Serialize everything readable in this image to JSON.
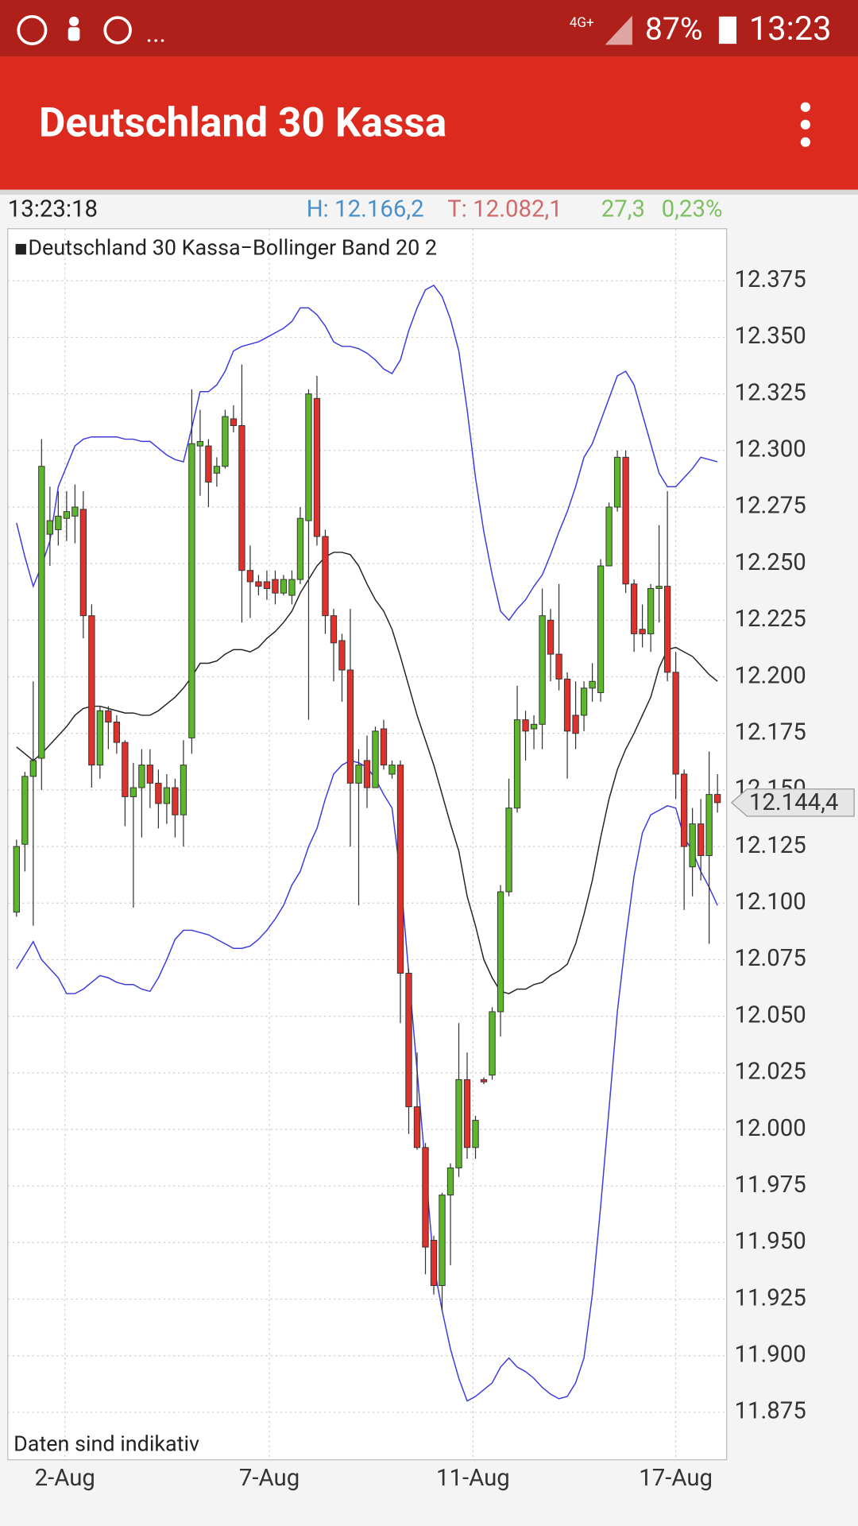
{
  "status_bar": {
    "more": "...",
    "network": "4G+",
    "battery": "87%",
    "time": "13:23"
  },
  "app_bar": {
    "title": "Deutschland 30 Kassa"
  },
  "info": {
    "time": "13:23:18",
    "high": "H: 12.166,2",
    "low": "T: 12.082,1",
    "change": "27,3",
    "change_pct": "0,23%"
  },
  "chart_data": {
    "type": "candlestick",
    "legend": "▪Deutschland 30 Kassa−Bollinger Band 20 2",
    "note": "Daten sind indikativ",
    "up_color": "#5cb82a",
    "down_color": "#e0322c",
    "grid": true,
    "x": [
      0,
      1,
      2,
      3,
      4,
      5,
      6,
      7,
      8,
      9,
      10,
      11,
      12,
      13,
      14,
      15,
      16,
      17,
      18,
      19,
      20,
      21,
      22,
      23,
      24,
      25,
      26,
      27,
      28,
      29,
      30,
      31,
      32,
      33,
      34,
      35,
      36,
      37,
      38,
      39,
      40,
      41,
      42,
      43,
      44,
      45,
      46,
      47,
      48,
      49,
      50,
      51,
      52,
      53,
      54,
      55,
      56,
      57,
      58,
      59,
      60,
      61,
      62,
      63,
      64,
      65,
      66,
      67,
      68,
      69,
      70,
      71,
      72,
      73,
      74,
      75,
      76,
      77,
      78,
      79,
      80,
      81,
      82,
      83,
      84
    ],
    "open": [
      12096,
      12126,
      12156,
      12164,
      12263,
      12265,
      12270,
      12271,
      12274,
      12227,
      12161,
      12185,
      12180,
      12171,
      12147,
      12151,
      12161,
      12153,
      12144,
      12151,
      12139,
      12173,
      12302,
      12302,
      12290,
      12293,
      12314,
      12311,
      12247,
      12242,
      12242,
      12243,
      12237,
      12236,
      12243,
      12269,
      12323,
      12262,
      12227,
      12216,
      12203,
      12153,
      12163,
      12151,
      12177,
      12157,
      12161,
      12069,
      12010,
      11992,
      11951,
      11931,
      11971,
      11983,
      12022,
      11992,
      12022,
      12024,
      12052,
      12105,
      12142,
      12181,
      12177,
      12179,
      12225,
      12210,
      12199,
      12183,
      12183,
      12195,
      12193,
      12249,
      12275,
      12297,
      12241,
      12221,
      12219,
      12239,
      12240,
      12202,
      12157,
      12116,
      12135,
      12121,
      12148
    ],
    "high": [
      12128,
      12158,
      12198,
      12305,
      12284,
      12282,
      12282,
      12285,
      12282,
      12232,
      12187,
      12187,
      12183,
      12172,
      12162,
      12168,
      12168,
      12159,
      12157,
      12155,
      12172,
      12327,
      12318,
      12305,
      12297,
      12318,
      12320,
      12338,
      12258,
      12245,
      12247,
      12247,
      12245,
      12247,
      12275,
      12327,
      12333,
      12265,
      12230,
      12219,
      12230,
      12168,
      12174,
      12178,
      12181,
      12163,
      12163,
      12071,
      12034,
      11994,
      11953,
      11972,
      11985,
      12047,
      12034,
      12006,
      12023,
      12054,
      12108,
      12155,
      12196,
      12185,
      12183,
      12239,
      12230,
      12241,
      12202,
      12198,
      12198,
      12206,
      12252,
      12277,
      12300,
      12300,
      12243,
      12232,
      12241,
      12267,
      12282,
      12211,
      12159,
      12142,
      12146,
      12167,
      12157
    ],
    "low": [
      12094,
      12114,
      12090,
      12150,
      12249,
      12258,
      12260,
      12259,
      12217,
      12151,
      12155,
      12168,
      12166,
      12134,
      12098,
      12129,
      12142,
      12133,
      12135,
      12129,
      12125,
      12166,
      12280,
      12275,
      12284,
      12292,
      12308,
      12224,
      12226,
      12236,
      12234,
      12232,
      12236,
      12232,
      12241,
      12181,
      12258,
      12219,
      12198,
      12189,
      12125,
      12099,
      12142,
      12151,
      12159,
      12155,
      12047,
      11998,
      11991,
      11936,
      11927,
      11920,
      11940,
      11979,
      11987,
      11987,
      12020,
      12022,
      12041,
      12103,
      12140,
      12163,
      12168,
      12168,
      12198,
      12194,
      12155,
      12168,
      12176,
      12189,
      12189,
      12249,
      12273,
      12237,
      12211,
      12213,
      12211,
      12224,
      12198,
      12146,
      12097,
      12103,
      12110,
      12082,
      12140
    ],
    "close": [
      12125,
      12156,
      12163,
      12293,
      12269,
      12271,
      12273,
      12275,
      12227,
      12161,
      12185,
      12180,
      12171,
      12147,
      12151,
      12161,
      12153,
      12144,
      12151,
      12139,
      12161,
      12303,
      12304,
      12286,
      12293,
      12315,
      12311,
      12247,
      12242,
      12240,
      12239,
      12237,
      12243,
      12243,
      12270,
      12325,
      12262,
      12227,
      12215,
      12203,
      12153,
      12161,
      12151,
      12176,
      12161,
      12161,
      12069,
      12010,
      11992,
      11948,
      11931,
      11971,
      11983,
      12022,
      11992,
      12004,
      12021,
      12052,
      12105,
      12142,
      12181,
      12176,
      12179,
      12227,
      12210,
      12199,
      12176,
      12175,
      12195,
      12198,
      12249,
      12275,
      12297,
      12241,
      12219,
      12219,
      12239,
      12240,
      12202,
      12157,
      12125,
      12135,
      12121,
      12148,
      12144.4
    ],
    "overlays": [
      {
        "color": "#3a3ae0",
        "values": [
          12268,
          12253,
          12240,
          12249,
          12260,
          12284,
          12293,
          12302,
          12305,
          12306,
          12306,
          12306,
          12306,
          12305,
          12305,
          12304,
          12304,
          12301,
          12298,
          12296,
          12295,
          12310,
          12326,
          12326,
          12329,
          12335,
          12344,
          12346,
          12347,
          12348,
          12350,
          12352,
          12354,
          12357,
          12363,
          12363,
          12360,
          12355,
          12348,
          12346,
          12346,
          12345,
          12343,
          12340,
          12336,
          12334,
          12340,
          12353,
          12363,
          12371,
          12373,
          12368,
          12358,
          12344,
          12318,
          12288,
          12264,
          12245,
          12229,
          12225,
          12230,
          12234,
          12240,
          12245,
          12254,
          12264,
          12273,
          12284,
          12297,
          12303,
          12313,
          12323,
          12333,
          12335,
          12329,
          12316,
          12303,
          12290,
          12284,
          12284,
          12288,
          12292,
          12297,
          12296,
          12295
        ]
      },
      {
        "color": "#222222",
        "values": [
          12169,
          12166,
          12163,
          12166,
          12170,
          12174,
          12178,
          12183,
          12186,
          12187,
          12187,
          12186,
          12185,
          12184,
          12184,
          12183,
          12183,
          12185,
          12188,
          12191,
          12195,
          12200,
          12206,
          12206,
          12207,
          12210,
          12212,
          12212,
          12211,
          12213,
          12217,
          12220,
          12224,
          12229,
          12237,
          12243,
          12249,
          12253,
          12255,
          12255,
          12254,
          12249,
          12241,
          12234,
          12229,
          12221,
          12209,
          12196,
          12183,
          12172,
          12161,
          12148,
          12135,
          12123,
          12103,
          12090,
          12075,
          12067,
          12061,
          12060,
          12062,
          12062,
          12064,
          12065,
          12068,
          12070,
          12073,
          12082,
          12095,
          12110,
          12129,
          12146,
          12159,
          12168,
          12175,
          12183,
          12191,
          12204,
          12212,
          12213,
          12211,
          12209,
          12205,
          12201,
          12198
        ]
      },
      {
        "color": "#3a3ae0",
        "values": [
          12071,
          12077,
          12083,
          12075,
          12071,
          12067,
          12060,
          12060,
          12062,
          12065,
          12068,
          12067,
          12065,
          12064,
          12064,
          12062,
          12061,
          12067,
          12075,
          12084,
          12088,
          12088,
          12087,
          12086,
          12084,
          12082,
          12080,
          12080,
          12081,
          12084,
          12088,
          12093,
          12099,
          12108,
          12114,
          12125,
          12133,
          12146,
          12157,
          12161,
          12163,
          12162,
          12160,
          12155,
          12148,
          12142,
          12112,
          12069,
          12026,
          11983,
          11940,
          11920,
          11903,
          11890,
          11880,
          11882,
          11885,
          11888,
          11895,
          11899,
          11895,
          11893,
          11890,
          11886,
          11883,
          11881,
          11882,
          11888,
          11899,
          11927,
          11966,
          12009,
          12052,
          12084,
          12112,
          12131,
          12139,
          12141,
          12143,
          12142,
          12129,
          12123,
          12114,
          12107,
          12099
        ]
      }
    ],
    "last_price": {
      "value": 12144.4,
      "label": "12.144,4"
    },
    "xlim": [
      -1.05,
      85.1
    ],
    "xticks": [
      {
        "value": 5.8,
        "label": "2-Aug"
      },
      {
        "value": 30.3,
        "label": "7-Aug"
      },
      {
        "value": 54.7,
        "label": "11-Aug"
      },
      {
        "value": 79,
        "label": "17-Aug"
      }
    ],
    "ylim": [
      11854,
      12398
    ],
    "yticks": [
      {
        "value": 11875,
        "label": "11.875"
      },
      {
        "value": 11900,
        "label": "11.900"
      },
      {
        "value": 11925,
        "label": "11.925"
      },
      {
        "value": 11950,
        "label": "11.950"
      },
      {
        "value": 11975,
        "label": "11.975"
      },
      {
        "value": 12000,
        "label": "12.000"
      },
      {
        "value": 12025,
        "label": "12.025"
      },
      {
        "value": 12050,
        "label": "12.050"
      },
      {
        "value": 12075,
        "label": "12.075"
      },
      {
        "value": 12100,
        "label": "12.100"
      },
      {
        "value": 12125,
        "label": "12.125"
      },
      {
        "value": 12150,
        "label": "12.150"
      },
      {
        "value": 12175,
        "label": "12.175"
      },
      {
        "value": 12200,
        "label": "12.200"
      },
      {
        "value": 12225,
        "label": "12.225"
      },
      {
        "value": 12250,
        "label": "12.250"
      },
      {
        "value": 12275,
        "label": "12.275"
      },
      {
        "value": 12300,
        "label": "12.300"
      },
      {
        "value": 12325,
        "label": "12.325"
      },
      {
        "value": 12350,
        "label": "12.350"
      },
      {
        "value": 12375,
        "label": "12.375"
      }
    ]
  }
}
